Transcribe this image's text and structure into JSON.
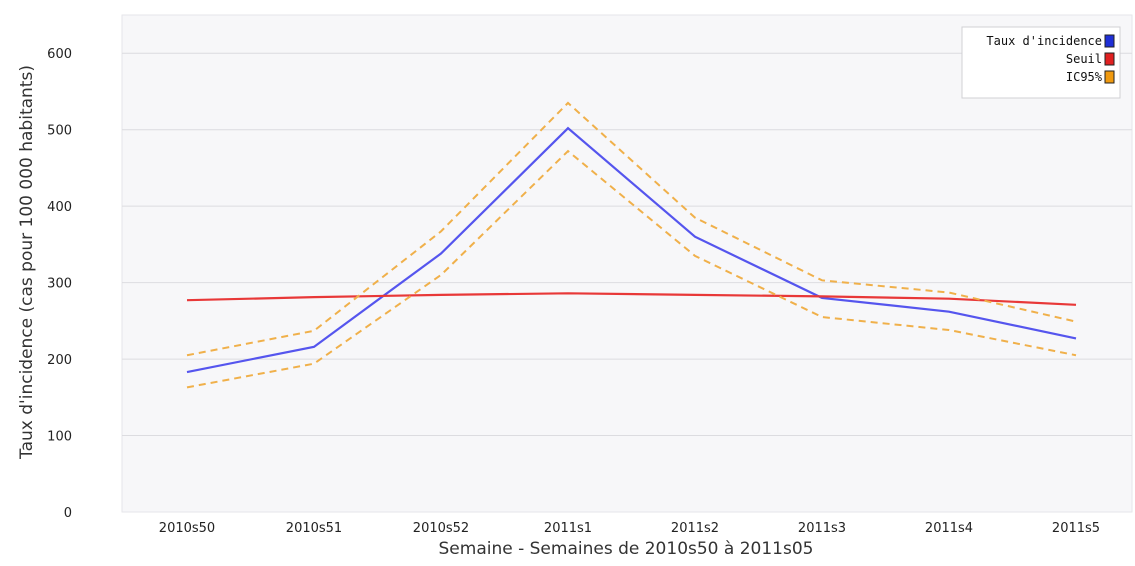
{
  "chart_data": {
    "type": "line",
    "title": "",
    "xlabel": "Semaine - Semaines de 2010s50 à 2011s05",
    "ylabel": "Taux d'incidence (cas pour 100 000 habitants)",
    "ylim": [
      0,
      650
    ],
    "yticks": [
      0,
      100,
      200,
      300,
      400,
      500,
      600
    ],
    "grid": true,
    "legend_position": "top-right",
    "categories": [
      "2010s50",
      "2010s51",
      "2010s52",
      "2011s1",
      "2011s2",
      "2011s3",
      "2011s4",
      "2011s5"
    ],
    "series": [
      {
        "name": "Taux d'incidence",
        "color": "#5555ee",
        "style": "solid",
        "values": [
          183,
          216,
          338,
          502,
          360,
          280,
          262,
          227
        ]
      },
      {
        "name": "Seuil",
        "color": "#e83838",
        "style": "solid",
        "values": [
          277,
          281,
          284,
          286,
          284,
          282,
          279,
          271
        ]
      },
      {
        "name": "IC95%",
        "color": "#f0b04a",
        "style": "dashed",
        "values_upper": [
          205,
          237,
          367,
          535,
          385,
          303,
          287,
          249
        ],
        "values_lower": [
          163,
          194,
          310,
          472,
          335,
          255,
          238,
          205
        ]
      }
    ],
    "legend_swatches": [
      {
        "name": "Taux d'incidence",
        "color": "#1f2fd6"
      },
      {
        "name": "Seuil",
        "color": "#e02020"
      },
      {
        "name": "IC95%",
        "color": "#f09a10"
      }
    ]
  }
}
